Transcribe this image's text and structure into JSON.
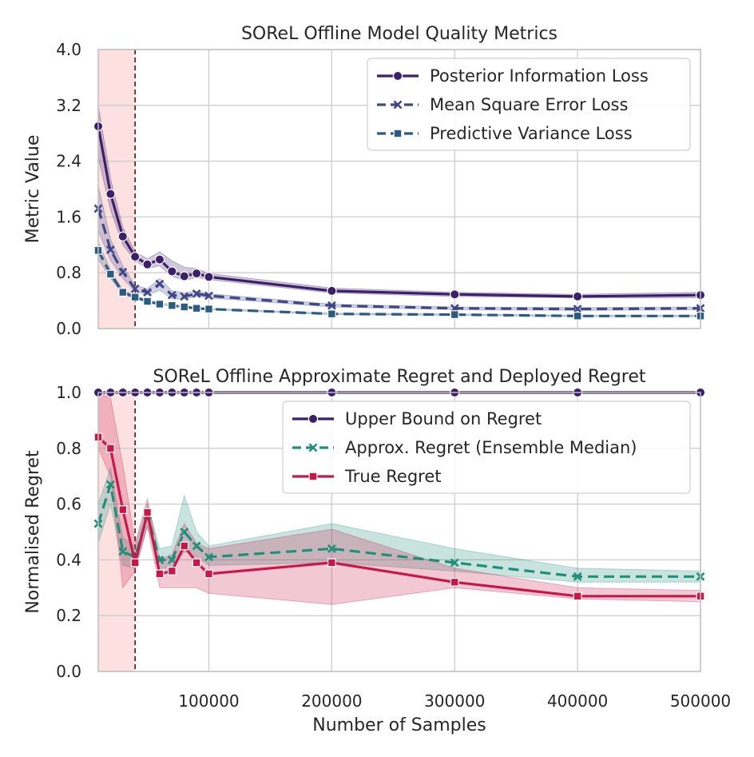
{
  "chart_data": [
    {
      "type": "line",
      "title": "SOReL Offline Model Quality Metrics",
      "xlabel": "",
      "ylabel": "Metric Value",
      "xlim": [
        10000,
        500000
      ],
      "ylim": [
        0,
        4.0
      ],
      "yticks": [
        "0.0",
        "0.8",
        "1.6",
        "2.4",
        "3.2",
        "4.0"
      ],
      "xticks": [
        100000,
        200000,
        300000,
        400000,
        500000
      ],
      "grid": true,
      "legend": "top-right",
      "shaded_region": {
        "x0": 10000,
        "x1": 40000,
        "color": "#fde1e1"
      },
      "vline": {
        "x": 40000,
        "color": "#4a2e34"
      },
      "x": [
        10000,
        20000,
        30000,
        40000,
        50000,
        60000,
        70000,
        80000,
        90000,
        100000,
        200000,
        300000,
        400000,
        500000
      ],
      "series": [
        {
          "name": "Posterior Information Loss",
          "color": "#3b1f6b",
          "marker": "circle",
          "dash": "solid",
          "values": [
            2.9,
            1.93,
            1.32,
            1.03,
            0.92,
            0.99,
            0.82,
            0.75,
            0.79,
            0.74,
            0.54,
            0.49,
            0.46,
            0.48
          ],
          "lower": [
            2.45,
            1.7,
            1.2,
            0.97,
            0.86,
            0.9,
            0.75,
            0.69,
            0.73,
            0.7,
            0.51,
            0.46,
            0.44,
            0.44
          ],
          "upper": [
            3.2,
            2.15,
            1.45,
            1.1,
            1.0,
            1.1,
            0.97,
            0.88,
            0.86,
            0.79,
            0.58,
            0.52,
            0.49,
            0.52
          ]
        },
        {
          "name": "Mean Square Error Loss",
          "color": "#3f4788",
          "marker": "x",
          "dash": "dashed",
          "values": [
            1.72,
            1.13,
            0.81,
            0.57,
            0.52,
            0.64,
            0.48,
            0.46,
            0.5,
            0.47,
            0.33,
            0.29,
            0.28,
            0.29
          ],
          "lower": [
            1.4,
            0.98,
            0.72,
            0.53,
            0.48,
            0.55,
            0.43,
            0.42,
            0.46,
            0.44,
            0.31,
            0.27,
            0.26,
            0.27
          ],
          "upper": [
            2.05,
            1.28,
            0.9,
            0.62,
            0.57,
            0.72,
            0.54,
            0.51,
            0.54,
            0.5,
            0.35,
            0.31,
            0.3,
            0.31
          ]
        },
        {
          "name": "Predictive Variance Loss",
          "color": "#2c5b82",
          "marker": "square",
          "dash": "dashed",
          "values": [
            1.12,
            0.78,
            0.52,
            0.45,
            0.39,
            0.35,
            0.33,
            0.31,
            0.29,
            0.28,
            0.21,
            0.2,
            0.18,
            0.18
          ],
          "lower": [
            1.0,
            0.72,
            0.49,
            0.43,
            0.37,
            0.34,
            0.32,
            0.3,
            0.28,
            0.27,
            0.2,
            0.19,
            0.17,
            0.17
          ],
          "upper": [
            1.24,
            0.84,
            0.55,
            0.47,
            0.41,
            0.37,
            0.34,
            0.32,
            0.3,
            0.29,
            0.22,
            0.21,
            0.19,
            0.19
          ]
        }
      ]
    },
    {
      "type": "line",
      "title": "SOReL Offline Approximate Regret and Deployed Regret",
      "xlabel": "Number of Samples",
      "ylabel": "Normalised Regret",
      "xlim": [
        10000,
        500000
      ],
      "ylim": [
        0,
        1.0
      ],
      "yticks": [
        "0.0",
        "0.2",
        "0.4",
        "0.6",
        "0.8",
        "1.0"
      ],
      "xticks": [
        100000,
        200000,
        300000,
        400000,
        500000
      ],
      "grid": true,
      "legend": "top-right",
      "shaded_region": {
        "x0": 10000,
        "x1": 40000,
        "color": "#fde1e1"
      },
      "vline": {
        "x": 40000,
        "color": "#4a2e34"
      },
      "x": [
        10000,
        20000,
        30000,
        40000,
        50000,
        60000,
        70000,
        80000,
        90000,
        100000,
        200000,
        300000,
        400000,
        500000
      ],
      "series": [
        {
          "name": "Upper Bound on Regret",
          "color": "#3b1f6b",
          "marker": "circle",
          "dash": "solid",
          "values": [
            1.0,
            1.0,
            1.0,
            1.0,
            1.0,
            1.0,
            1.0,
            1.0,
            1.0,
            1.0,
            1.0,
            1.0,
            1.0,
            1.0
          ]
        },
        {
          "name": "Approx. Regret (Ensemble Median)",
          "color": "#1f8f7a",
          "marker": "x",
          "dash": "dashed",
          "values": [
            0.53,
            0.67,
            0.43,
            0.41,
            0.56,
            0.4,
            0.4,
            0.5,
            0.45,
            0.41,
            0.44,
            0.39,
            0.34,
            0.34
          ],
          "lower": [
            0.46,
            0.6,
            0.38,
            0.37,
            0.52,
            0.37,
            0.37,
            0.43,
            0.41,
            0.38,
            0.39,
            0.36,
            0.32,
            0.32
          ],
          "upper": [
            0.6,
            0.73,
            0.48,
            0.45,
            0.6,
            0.44,
            0.45,
            0.63,
            0.5,
            0.45,
            0.53,
            0.44,
            0.37,
            0.36
          ]
        },
        {
          "name": "True Regret",
          "color": "#c8184a",
          "marker": "square",
          "dash": "solid",
          "values": [
            0.84,
            0.8,
            0.58,
            0.39,
            0.57,
            0.35,
            0.36,
            0.45,
            0.39,
            0.35,
            0.39,
            0.32,
            0.27,
            0.27
          ],
          "lower": [
            0.8,
            0.7,
            0.3,
            0.36,
            0.52,
            0.3,
            0.3,
            0.3,
            0.3,
            0.28,
            0.24,
            0.3,
            0.26,
            0.25
          ],
          "upper": [
            1.0,
            0.98,
            0.74,
            0.46,
            0.62,
            0.4,
            0.42,
            0.53,
            0.46,
            0.44,
            0.51,
            0.37,
            0.3,
            0.29
          ]
        }
      ]
    }
  ]
}
